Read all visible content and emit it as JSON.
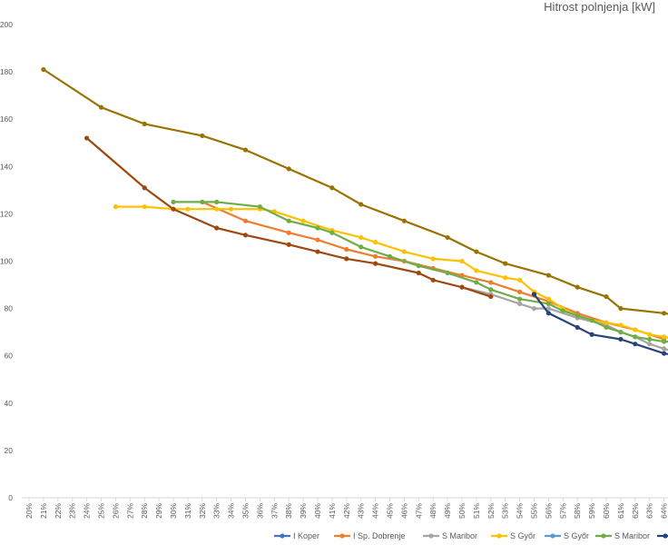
{
  "chart_data": {
    "type": "line",
    "title": "Hitrost polnjenja [kW]",
    "xlabel": "",
    "ylabel": "",
    "ylim": [
      0,
      200
    ],
    "yticks": [
      0,
      20,
      40,
      60,
      80,
      100,
      120,
      140,
      160,
      180,
      200
    ],
    "categories": [
      "20%",
      "21%",
      "22%",
      "23%",
      "24%",
      "25%",
      "26%",
      "27%",
      "28%",
      "29%",
      "30%",
      "31%",
      "32%",
      "33%",
      "34%",
      "35%",
      "36%",
      "37%",
      "38%",
      "39%",
      "40%",
      "41%",
      "42%",
      "43%",
      "44%",
      "45%",
      "46%",
      "47%",
      "48%",
      "49%",
      "50%",
      "51%",
      "52%",
      "53%",
      "54%",
      "55%",
      "56%",
      "57%",
      "58%",
      "59%",
      "60%",
      "61%",
      "62%",
      "63%",
      "64%"
    ],
    "grid": false,
    "legend_position": "bottom",
    "series": [
      {
        "name": "I Koper",
        "color": "#4472c4",
        "points": []
      },
      {
        "name": "I Sp. Dobrenje",
        "color": "#ed7d31",
        "points": [
          [
            32,
            125
          ],
          [
            35,
            117
          ],
          [
            38,
            112
          ],
          [
            40,
            109
          ],
          [
            42,
            105
          ],
          [
            44,
            102
          ],
          [
            46,
            100
          ],
          [
            48,
            97
          ],
          [
            50,
            94
          ],
          [
            52,
            91
          ],
          [
            54,
            87
          ],
          [
            56,
            83
          ],
          [
            58,
            78
          ],
          [
            60,
            74
          ],
          [
            62,
            71
          ],
          [
            64,
            67
          ]
        ]
      },
      {
        "name": "S Maribor",
        "color": "#a5a5a5",
        "points": [
          [
            50,
            89
          ],
          [
            52,
            86
          ],
          [
            54,
            82
          ],
          [
            55,
            80
          ],
          [
            56,
            80
          ],
          [
            58,
            76
          ],
          [
            60,
            73
          ],
          [
            61,
            70
          ],
          [
            62,
            68
          ],
          [
            63,
            65
          ],
          [
            64,
            63
          ],
          [
            65,
            61
          ]
        ]
      },
      {
        "name": "S Győr",
        "color": "#ffc000",
        "points": [
          [
            26,
            123
          ],
          [
            28,
            123
          ],
          [
            30,
            122
          ],
          [
            31,
            122
          ],
          [
            33,
            122
          ],
          [
            34,
            122
          ],
          [
            36,
            122
          ],
          [
            37,
            121
          ],
          [
            39,
            117
          ],
          [
            41,
            113
          ],
          [
            43,
            110
          ],
          [
            44,
            108
          ],
          [
            46,
            104
          ],
          [
            48,
            101
          ],
          [
            50,
            100
          ],
          [
            51,
            96
          ],
          [
            53,
            93
          ],
          [
            54,
            92
          ],
          [
            55,
            87
          ],
          [
            56,
            84
          ],
          [
            57,
            80
          ],
          [
            58,
            77
          ],
          [
            59,
            75
          ],
          [
            60,
            74
          ],
          [
            61,
            73
          ],
          [
            62,
            71
          ],
          [
            63,
            69
          ],
          [
            64,
            68
          ],
          [
            65,
            67
          ]
        ]
      },
      {
        "name": "S Győr",
        "color": "#5b9bd5",
        "points": []
      },
      {
        "name": "S Maribor",
        "color": "#70ad47",
        "points": [
          [
            30,
            125
          ],
          [
            32,
            125
          ],
          [
            33,
            125
          ],
          [
            36,
            123
          ],
          [
            38,
            117
          ],
          [
            40,
            114
          ],
          [
            41,
            112
          ],
          [
            43,
            106
          ],
          [
            45,
            102
          ],
          [
            47,
            98
          ],
          [
            49,
            95
          ],
          [
            51,
            91
          ],
          [
            52,
            88
          ],
          [
            54,
            84
          ],
          [
            56,
            82
          ],
          [
            57,
            79
          ],
          [
            58,
            77
          ],
          [
            59,
            75
          ],
          [
            60,
            72
          ],
          [
            61,
            70
          ],
          [
            62,
            68
          ],
          [
            63,
            67
          ],
          [
            64,
            66
          ],
          [
            65,
            66
          ]
        ]
      },
      {
        "name": "",
        "color": "#264478",
        "points": [
          [
            55,
            86
          ],
          [
            56,
            78
          ],
          [
            58,
            72
          ],
          [
            59,
            69
          ],
          [
            61,
            67
          ],
          [
            62,
            65
          ],
          [
            64,
            61
          ],
          [
            65,
            60
          ]
        ]
      },
      {
        "name": "",
        "color": "#9e480e",
        "points": [
          [
            24,
            152
          ],
          [
            28,
            131
          ],
          [
            30,
            122
          ],
          [
            33,
            114
          ],
          [
            35,
            111
          ],
          [
            38,
            107
          ],
          [
            40,
            104
          ],
          [
            42,
            101
          ],
          [
            44,
            99
          ],
          [
            47,
            95
          ],
          [
            48,
            92
          ],
          [
            50,
            89
          ],
          [
            52,
            85
          ]
        ]
      },
      {
        "name": "",
        "color": "#997300",
        "points": [
          [
            21,
            181
          ],
          [
            25,
            165
          ],
          [
            28,
            158
          ],
          [
            32,
            153
          ],
          [
            35,
            147
          ],
          [
            38,
            139
          ],
          [
            41,
            131
          ],
          [
            43,
            124
          ],
          [
            46,
            117
          ],
          [
            49,
            110
          ],
          [
            51,
            104
          ],
          [
            53,
            99
          ],
          [
            56,
            94
          ],
          [
            58,
            89
          ],
          [
            60,
            85
          ],
          [
            61,
            80
          ],
          [
            64,
            78
          ],
          [
            65,
            77
          ]
        ]
      }
    ]
  }
}
